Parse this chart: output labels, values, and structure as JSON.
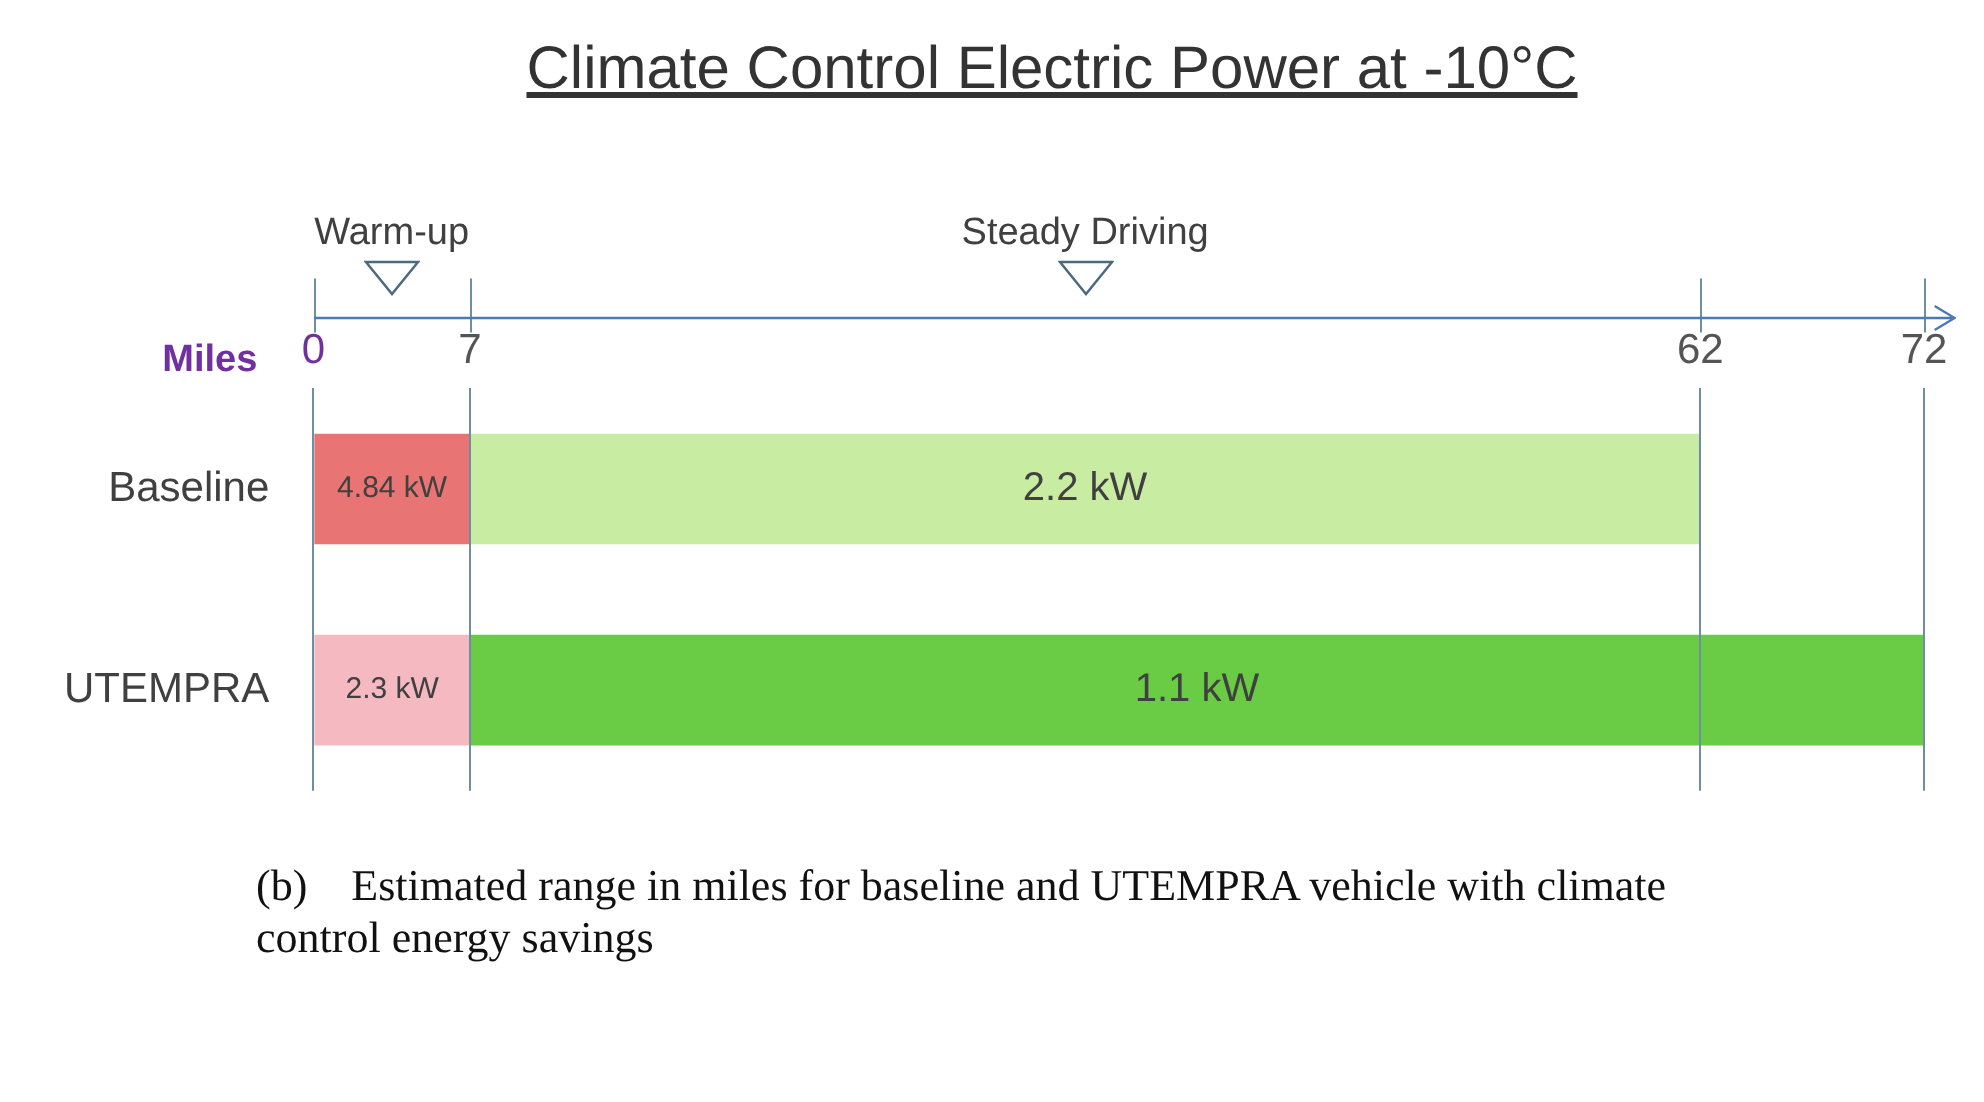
{
  "chart_data": {
    "type": "bar",
    "orientation": "horizontal",
    "stacked": true,
    "title": "Climate Control Electric Power at -10°C",
    "xlabel": "Miles",
    "categories": [
      "Baseline",
      "UTEMPRA"
    ],
    "series": [
      {
        "colors": [
          "#e87474",
          "#f5b9c2"
        ],
        "values": [
          7,
          7
        ]
      },
      {
        "colors": [
          "#c8eda2",
          "#6acb45"
        ],
        "values": [
          55,
          65
        ]
      }
    ],
    "xlim": [
      0,
      72
    ],
    "xticks": [
      0,
      7,
      62,
      72
    ],
    "grid": "x",
    "legend": false,
    "annotations": [
      "Warm-up",
      "Steady Driving",
      "4.84 kW",
      "2.2 kW",
      "2.3 kW",
      "1.1 kW",
      "(b) Estimated range in miles for baseline and UTEMPRA vehicle with climate control energy savings"
    ]
  }
}
